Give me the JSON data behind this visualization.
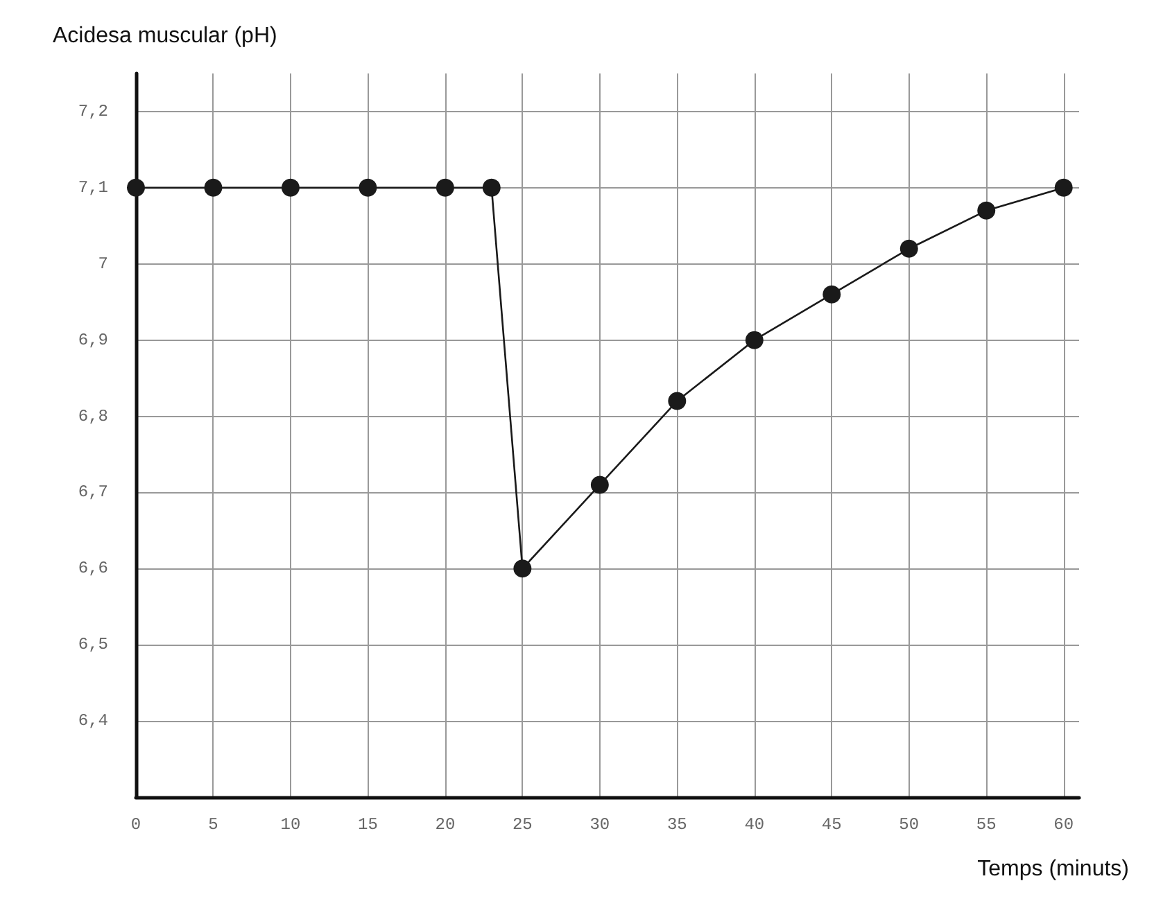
{
  "chart_data": {
    "type": "line",
    "ylabel": "Acidesa muscular (pH)",
    "xlabel": "Temps (minuts)",
    "x": [
      0,
      5,
      10,
      15,
      20,
      23,
      25,
      30,
      35,
      40,
      45,
      50,
      55,
      60
    ],
    "values": [
      7.1,
      7.1,
      7.1,
      7.1,
      7.1,
      7.1,
      6.6,
      6.71,
      6.82,
      6.9,
      6.96,
      7.02,
      7.07,
      7.1
    ],
    "color": "#1a1a1a",
    "marker": "circle",
    "line_style": "solid",
    "grid": true,
    "xlim": [
      0,
      61
    ],
    "xticks": [
      0,
      5,
      10,
      15,
      20,
      25,
      30,
      35,
      40,
      45,
      50,
      55,
      60
    ],
    "ylim": [
      6.3,
      7.25
    ],
    "yticks": [
      {
        "value": 6.4,
        "label": "6,4"
      },
      {
        "value": 6.5,
        "label": "6,5"
      },
      {
        "value": 6.6,
        "label": "6,6"
      },
      {
        "value": 6.7,
        "label": "6,7"
      },
      {
        "value": 6.8,
        "label": "6,8"
      },
      {
        "value": 6.9,
        "label": "6,9"
      },
      {
        "value": 7,
        "label": "7"
      },
      {
        "value": 7.1,
        "label": "7,1"
      },
      {
        "value": 7.2,
        "label": "7,2"
      }
    ]
  }
}
